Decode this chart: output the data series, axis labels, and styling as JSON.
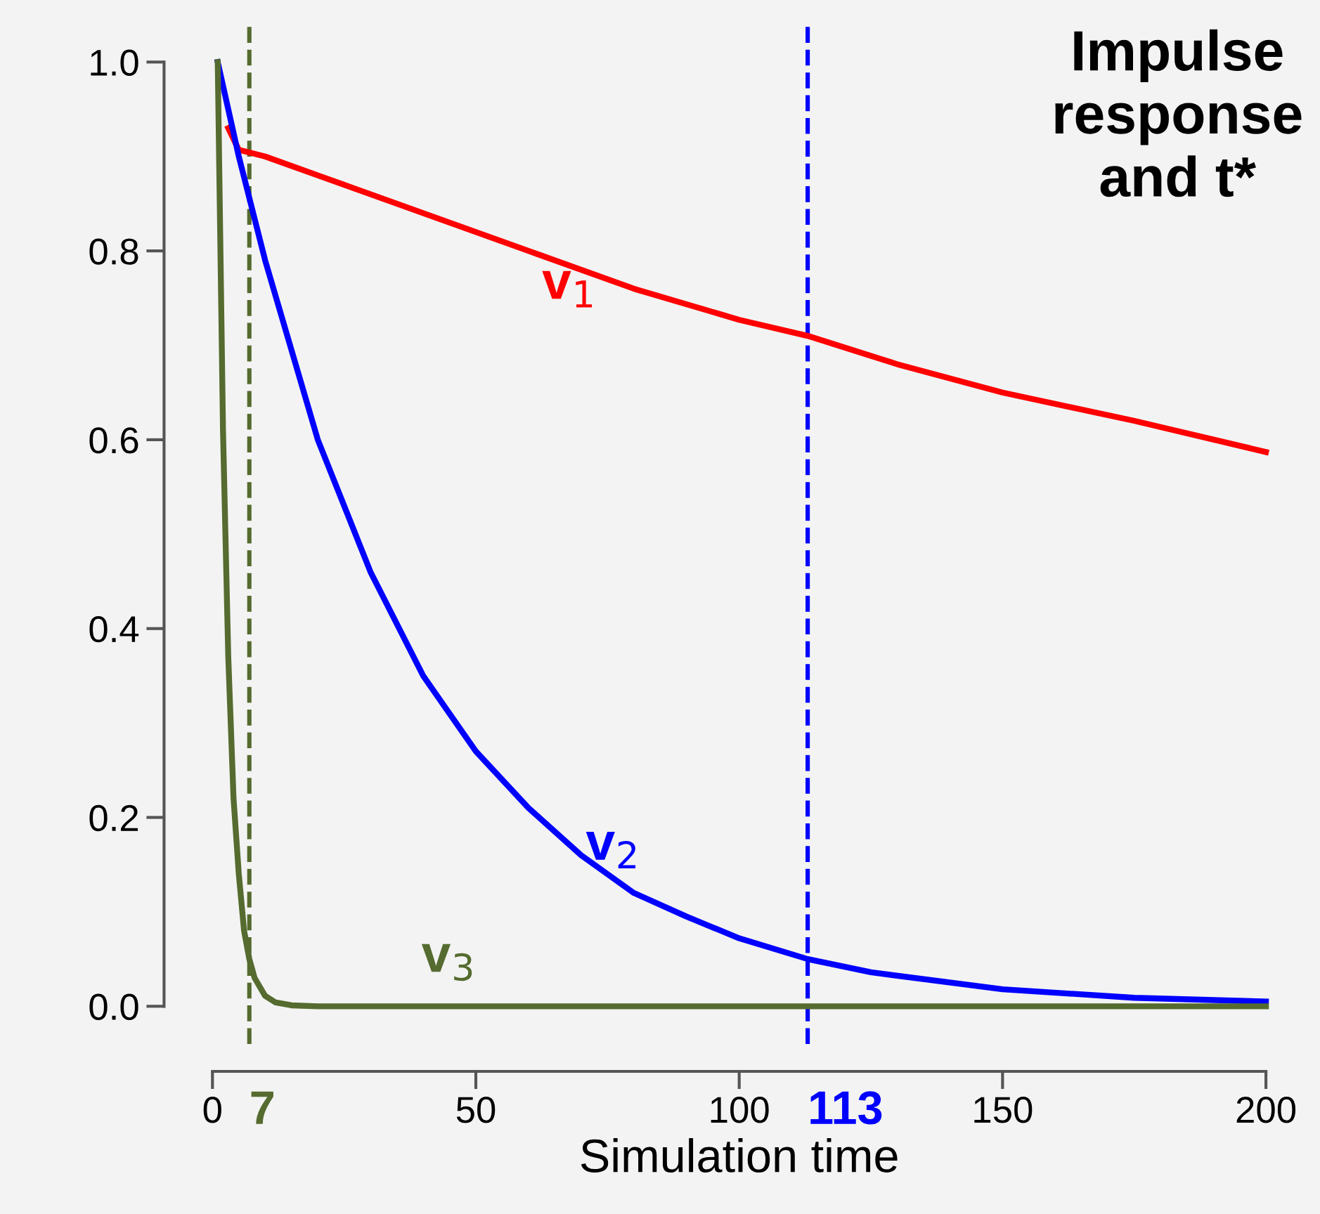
{
  "chart_data": {
    "type": "line",
    "title": "Impulse\nresponse\nand t*",
    "xlabel": "Simulation time",
    "series": [
      {
        "name": "v$_{1}$",
        "color": "#ff0000",
        "x": [
          3,
          5,
          10,
          20,
          40,
          60,
          80,
          100,
          113,
          130,
          150,
          175,
          200
        ],
        "values": [
          0.93,
          0.907,
          0.9,
          0.88,
          0.84,
          0.8,
          0.76,
          0.727,
          0.71,
          0.68,
          0.65,
          0.62,
          0.587
        ]
      },
      {
        "name": "v$_{2}$",
        "color": "#0000ff",
        "x": [
          1,
          5,
          10,
          20,
          30,
          40,
          50,
          60,
          70,
          80,
          90,
          100,
          113,
          125,
          150,
          175,
          200
        ],
        "values": [
          1.0,
          0.9,
          0.79,
          0.6,
          0.46,
          0.35,
          0.27,
          0.21,
          0.16,
          0.12,
          0.095,
          0.072,
          0.05,
          0.036,
          0.018,
          0.009,
          0.005
        ]
      },
      {
        "name": "v$_{3}$",
        "color": "#556b2f",
        "x": [
          1,
          2,
          3,
          4,
          5,
          6,
          7,
          8,
          10,
          12,
          15,
          20,
          50,
          100,
          150,
          200
        ],
        "values": [
          1.0,
          0.61,
          0.37,
          0.22,
          0.14,
          0.08,
          0.05,
          0.03,
          0.011,
          0.004,
          0.001,
          0,
          0,
          0,
          0,
          0
        ]
      }
    ],
    "ref_lines": [
      {
        "axis": "x",
        "value": 7,
        "label": "7",
        "color": "#556b2f",
        "line_style": "dashed"
      },
      {
        "axis": "x",
        "value": 113,
        "label": "113",
        "color": "#0000ff",
        "line_style": "dashed"
      }
    ],
    "xlim": [
      0,
      200
    ],
    "xticks": [
      0,
      50,
      100,
      150,
      200
    ],
    "ylim": [
      0,
      1
    ],
    "yticks": [
      {
        "value": 0,
        "label": "0.0"
      },
      {
        "value": 0.2,
        "label": "0.2"
      },
      {
        "value": 0.4,
        "label": "0.4"
      },
      {
        "value": 0.6,
        "label": "0.6"
      },
      {
        "value": 0.8,
        "label": "0.8"
      },
      {
        "value": 1,
        "label": "1.0"
      }
    ],
    "grid": false,
    "legend": false,
    "line_style": "solid",
    "marker": "none"
  }
}
